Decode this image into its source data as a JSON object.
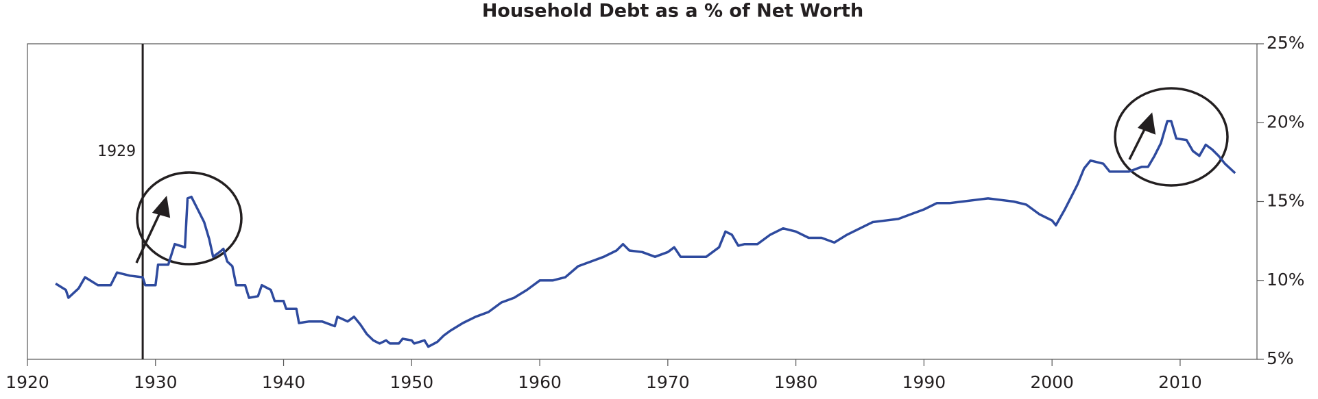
{
  "chart_data": {
    "type": "line",
    "title": "Household Debt as a % of Net Worth",
    "annotation": "1929",
    "vline_x": 1929,
    "xlim": [
      1920,
      2016
    ],
    "xticks": [
      1920,
      1930,
      1940,
      1950,
      1960,
      1970,
      1980,
      1990,
      2000,
      2010
    ],
    "ylim": [
      5,
      25
    ],
    "yticks": [
      {
        "value": 5,
        "label": "5%"
      },
      {
        "value": 10,
        "label": "10%"
      },
      {
        "value": 15,
        "label": "15%"
      },
      {
        "value": 20,
        "label": "20%"
      },
      {
        "value": 25,
        "label": "25%"
      }
    ],
    "y_axis_side": "right",
    "grid": false,
    "series": [
      {
        "color": "#2e4a9e",
        "x": [
          1922.2,
          1923,
          1923.2,
          1924,
          1924.5,
          1925.5,
          1926.5,
          1927,
          1928,
          1929,
          1929.2,
          1930,
          1930.2,
          1931,
          1931.5,
          1932.3,
          1932.5,
          1932.8,
          1933.3,
          1933.8,
          1934.2,
          1934.5,
          1935,
          1935.3,
          1935.6,
          1936,
          1936.3,
          1937,
          1937.3,
          1938,
          1938.3,
          1939,
          1939.3,
          1940,
          1940.2,
          1941,
          1941.2,
          1942,
          1943,
          1944,
          1944.2,
          1945,
          1945.5,
          1946,
          1946.5,
          1947,
          1947.5,
          1948,
          1948.3,
          1949,
          1949.3,
          1950,
          1950.2,
          1951,
          1951.3,
          1952,
          1952.5,
          1953,
          1954,
          1955,
          1956,
          1957,
          1958,
          1959,
          1960,
          1961,
          1962,
          1963,
          1964,
          1965,
          1966,
          1966.5,
          1967,
          1968,
          1969,
          1970,
          1970.5,
          1971,
          1972,
          1973,
          1974,
          1974.5,
          1975,
          1975.5,
          1976,
          1977,
          1978,
          1979,
          1980,
          1981,
          1982,
          1983,
          1984,
          1985,
          1986,
          1987,
          1988,
          1989,
          1990,
          1991,
          1992,
          1993,
          1994,
          1995,
          1996,
          1997,
          1998,
          1999,
          2000,
          2000.3,
          2001,
          2001.5,
          2002,
          2002.5,
          2003,
          2004,
          2004.5,
          2005,
          2006,
          2007,
          2007.5,
          2008,
          2008.5,
          2009,
          2009.3,
          2009.7,
          2010.5,
          2011,
          2011.5,
          2012,
          2012.5,
          2013,
          2013.5,
          2014.3
        ],
        "values": [
          9.8,
          9.4,
          8.9,
          9.5,
          10.2,
          9.7,
          9.7,
          10.5,
          10.3,
          10.2,
          9.7,
          9.7,
          11.0,
          11.0,
          12.3,
          12.1,
          15.2,
          15.3,
          14.5,
          13.7,
          12.6,
          11.5,
          11.8,
          12.0,
          11.2,
          10.9,
          9.7,
          9.7,
          8.9,
          9.0,
          9.7,
          9.4,
          8.7,
          8.7,
          8.2,
          8.2,
          7.3,
          7.4,
          7.4,
          7.1,
          7.7,
          7.4,
          7.7,
          7.2,
          6.6,
          6.2,
          6.0,
          6.2,
          6.0,
          6.0,
          6.3,
          6.2,
          6.0,
          6.2,
          5.8,
          6.1,
          6.5,
          6.8,
          7.3,
          7.7,
          8.0,
          8.6,
          8.9,
          9.4,
          10.0,
          10.0,
          10.2,
          10.9,
          11.2,
          11.5,
          11.9,
          12.3,
          11.9,
          11.8,
          11.5,
          11.8,
          12.1,
          11.5,
          11.5,
          11.5,
          12.1,
          13.1,
          12.9,
          12.2,
          12.3,
          12.3,
          12.9,
          13.3,
          13.1,
          12.7,
          12.7,
          12.4,
          12.9,
          13.3,
          13.7,
          13.8,
          13.9,
          14.2,
          14.5,
          14.9,
          14.9,
          15.0,
          15.1,
          15.2,
          15.1,
          15.0,
          14.8,
          14.2,
          13.8,
          13.5,
          14.5,
          15.3,
          16.1,
          17.1,
          17.6,
          17.4,
          16.9,
          16.9,
          16.9,
          17.2,
          17.2,
          17.9,
          18.7,
          20.1,
          20.1,
          19.0,
          18.9,
          18.2,
          17.9,
          18.6,
          18.3,
          17.9,
          17.4,
          16.8
        ]
      }
    ]
  }
}
